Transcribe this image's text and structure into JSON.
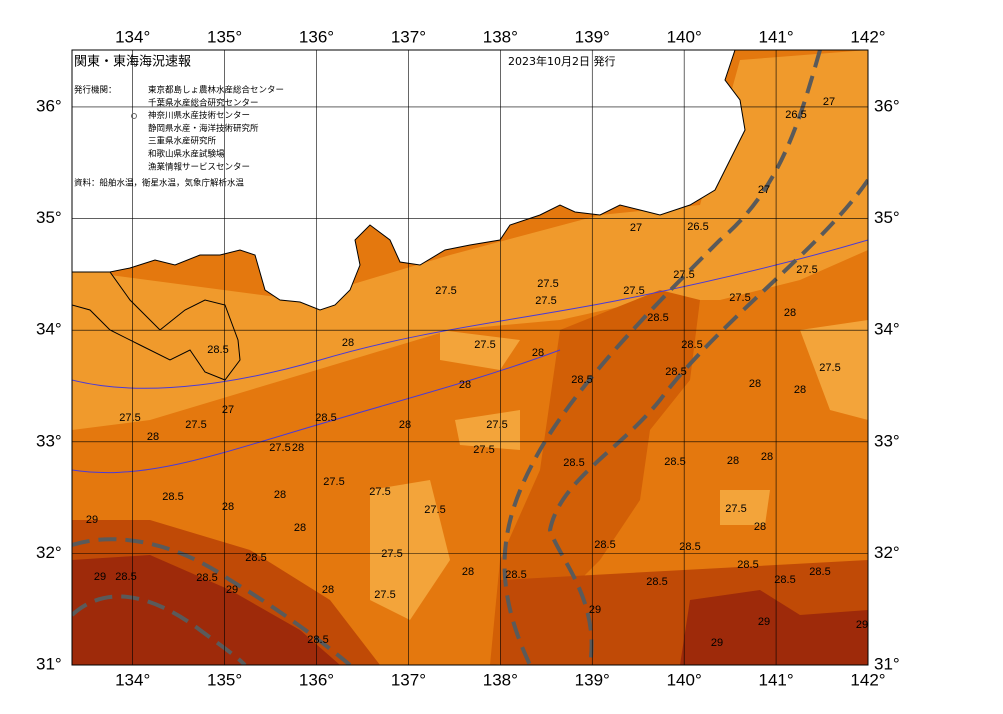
{
  "map": {
    "title": "関東・東海海況速報",
    "date": "2023年10月2日 発行",
    "issuer_label": "発行機関：",
    "issuers": [
      "東京都島しょ農林水産総合センター",
      "千葉県水産総合研究センター",
      "神奈川県水産技術センター",
      "静岡県水産・海洋技術研究所",
      "三重県水産研究所",
      "和歌山県水産試験場",
      "漁業情報サービスセンター"
    ],
    "source": "資料：船舶水温，衛星水温，気象庁解析水温",
    "xlim": [
      133.34,
      142
    ],
    "ylim": [
      31,
      36.51
    ],
    "xticks": [
      {
        "value": 134,
        "label": "134°"
      },
      {
        "value": 135,
        "label": "135°"
      },
      {
        "value": 136,
        "label": "136°"
      },
      {
        "value": 137,
        "label": "137°"
      },
      {
        "value": 138,
        "label": "138°"
      },
      {
        "value": 139,
        "label": "139°"
      },
      {
        "value": 140,
        "label": "140°"
      },
      {
        "value": 141,
        "label": "141°"
      },
      {
        "value": 142,
        "label": "142°"
      }
    ],
    "yticks": [
      {
        "value": 31,
        "label": "31°"
      },
      {
        "value": 32,
        "label": "32°"
      },
      {
        "value": 33,
        "label": "33°"
      },
      {
        "value": 34,
        "label": "34°"
      },
      {
        "value": 35,
        "label": "35°"
      },
      {
        "value": 36,
        "label": "36°"
      }
    ],
    "grid": true,
    "contour_labels": [
      26.5,
      27,
      27,
      27,
      26.5,
      27.5,
      27.5,
      27.5,
      27.5,
      27.5,
      27.5,
      27.5,
      28,
      28.5,
      27.5,
      28,
      28,
      28.5,
      28.5,
      28.5,
      28,
      28,
      27.5,
      28.5,
      27.5,
      27.5,
      27,
      28,
      27.5,
      28,
      28.5,
      28,
      28,
      27.5,
      27.5,
      27.5,
      27.5,
      27.5,
      28.5,
      28.5,
      28,
      28,
      27.5,
      28,
      28.5,
      28,
      28,
      28,
      28.5,
      27.5,
      27.5,
      28,
      28.5,
      28.5,
      28.5,
      28.5,
      28.5,
      28.5,
      28.5,
      28,
      29,
      28.5,
      29,
      28.5,
      29,
      29,
      29,
      29,
      28.5,
      29
    ]
  }
}
